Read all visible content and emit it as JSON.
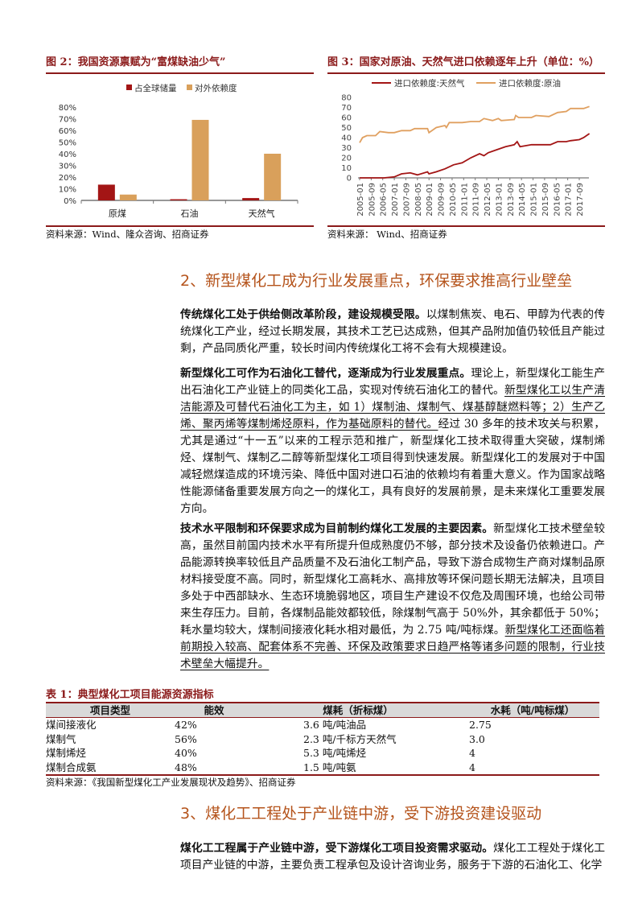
{
  "figure2": {
    "title": "图 2：我国资源禀赋为“富煤缺油少气”",
    "source": "资料来源：Wind、隆众咨询、招商证券",
    "chart_data": {
      "type": "bar",
      "categories": [
        "原煤",
        "石油",
        "天然气"
      ],
      "series": [
        {
          "name": "占全球储量",
          "values": [
            13.5,
            1,
            2
          ],
          "color": "#a31515"
        },
        {
          "name": "对外依赖度",
          "values": [
            5,
            69,
            40
          ],
          "color": "#d9a05b"
        }
      ],
      "ylim": [
        0,
        80
      ],
      "yticks": [
        "0%",
        "10%",
        "20%",
        "30%",
        "40%",
        "50%",
        "60%",
        "70%",
        "80%"
      ],
      "legend": "top",
      "grid": false
    }
  },
  "figure3": {
    "title": "图 3：国家对原油、天然气进口依赖逐年上升（单位：%）",
    "source": "资料来源：  Wind、招商证券",
    "chart_data": {
      "type": "line",
      "ylim": [
        0,
        80
      ],
      "yticks": [
        "0",
        "10",
        "20",
        "30",
        "40",
        "50",
        "60",
        "70",
        "80"
      ],
      "xticks": [
        "2005-01",
        "2005-09",
        "2006-05",
        "2007-01",
        "2007-09",
        "2008-05",
        "2009-01",
        "2009-09",
        "2010-05",
        "2011-01",
        "2011-09",
        "2012-05",
        "2013-01",
        "2013-09",
        "2014-05",
        "2015-01",
        "2015-09",
        "2016-05",
        "2017-01",
        "2017-09"
      ],
      "legend": "top",
      "grid": false,
      "series": [
        {
          "name": "进口依赖度:天然气",
          "color": "#a31515",
          "points": [
            [
              "2005-01",
              0
            ],
            [
              "2006-06",
              0
            ],
            [
              "2007-01",
              1
            ],
            [
              "2007-06",
              4
            ],
            [
              "2007-12",
              5
            ],
            [
              "2008-05",
              3
            ],
            [
              "2008-12",
              6
            ],
            [
              "2009-01",
              4
            ],
            [
              "2009-06",
              6
            ],
            [
              "2009-12",
              9
            ],
            [
              "2010-06",
              13
            ],
            [
              "2010-12",
              15
            ],
            [
              "2011-06",
              20
            ],
            [
              "2011-12",
              24
            ],
            [
              "2012-03",
              22
            ],
            [
              "2012-06",
              25
            ],
            [
              "2012-12",
              28
            ],
            [
              "2013-06",
              31
            ],
            [
              "2013-12",
              33
            ],
            [
              "2014-02",
              36
            ],
            [
              "2014-04",
              31
            ],
            [
              "2014-12",
              33
            ],
            [
              "2015-06",
              33
            ],
            [
              "2016-01",
              33
            ],
            [
              "2016-06",
              36
            ],
            [
              "2016-12",
              36
            ],
            [
              "2017-03",
              37
            ],
            [
              "2017-09",
              38
            ],
            [
              "2017-12",
              40
            ],
            [
              "2018-04",
              44
            ]
          ]
        },
        {
          "name": "进口依赖度:原油",
          "color": "#e0a060",
          "points": [
            [
              "2005-01",
              35
            ],
            [
              "2005-03",
              40
            ],
            [
              "2005-06",
              42
            ],
            [
              "2005-12",
              42
            ],
            [
              "2006-03",
              46
            ],
            [
              "2006-09",
              45
            ],
            [
              "2007-01",
              45
            ],
            [
              "2007-06",
              47
            ],
            [
              "2007-12",
              47
            ],
            [
              "2008-03",
              49
            ],
            [
              "2008-12",
              49
            ],
            [
              "2009-01",
              45
            ],
            [
              "2009-06",
              50
            ],
            [
              "2009-12",
              52
            ],
            [
              "2010-01",
              50
            ],
            [
              "2010-03",
              55
            ],
            [
              "2010-12",
              55
            ],
            [
              "2011-06",
              56
            ],
            [
              "2011-12",
              56
            ],
            [
              "2012-03",
              59
            ],
            [
              "2012-09",
              57
            ],
            [
              "2013-01",
              59
            ],
            [
              "2013-03",
              57
            ],
            [
              "2013-12",
              58
            ],
            [
              "2014-01",
              62
            ],
            [
              "2014-03",
              60
            ],
            [
              "2014-12",
              60
            ],
            [
              "2015-03",
              62
            ],
            [
              "2015-12",
              61
            ],
            [
              "2016-06",
              65
            ],
            [
              "2016-12",
              66
            ],
            [
              "2017-03",
              69
            ],
            [
              "2017-12",
              69
            ],
            [
              "2018-04",
              71
            ]
          ]
        }
      ]
    }
  },
  "section2": {
    "heading": "2、新型煤化工成为行业发展重点，环保要求推高行业壁垒",
    "paragraphs": [
      {
        "lead": "传统煤化工处于供给侧改革阶段，建设规模受限。",
        "text": "以煤制焦炭、电石、甲醇为代表的传统煤化工产业，经过长期发展，其技术工艺已达成熟，但其产品附加值仍较低且产能过剩，产品同质化严重，较长时间内传统煤化工将不会有大规模建设。",
        "underline": "",
        "tail": ""
      },
      {
        "lead": "新型煤化工可作为石油化工替代，逐渐成为行业发展重点。",
        "text": "理论上，新型煤化工能生产出石油化工产业链上的同类化工品，实现对传统石油化工的替代。",
        "underline": "新型煤化工以生产清洁能源及可替代石油化工为主，如 1）煤制油、煤制气、煤基醇醚燃料等；2）生产乙烯、聚丙烯等煤制烯烃原料，作为基础原料的替代。",
        "tail": "经过 30 多年的技术攻关与积累，尤其是通过“十一五”以来的工程示范和推广，新型煤化工技术取得重大突破，煤制烯烃、煤制气、煤制乙二醇等新型煤化工项目得到快速发展。新型煤化工的发展对于中国减轻燃煤造成的环境污染、降低中国对进口石油的依赖均有着重大意义。作为国家战略性能源储备重要发展方向之一的煤化工，具有良好的发展前景，是未来煤化工重要发展方向。"
      },
      {
        "lead": "技术水平限制和环保要求成为目前制约煤化工发展的主要因素。",
        "text": "新型煤化工技术壁垒较高，虽然目前国内技术水平有所提升但成熟度仍不够，部分技术及设备仍依赖进口。产品能源转换率较低且产品质量不及石油化工制产品，导致下游合成物生产商对煤制品原材料接受度不高。同时，新型煤化工高耗水、高排放等环保问题长期无法解决，且项目多处于中西部缺水、生态环境脆弱地区，项目生产建设不仅危及周围环境，也给公司带来生存压力。目前，各煤制品能效都较低，除煤制气高于 50%外，其余都低于 50%；耗水量均较大，煤制间接液化耗水相对最低，为 2.75 吨/吨标煤。",
        "underline": "新型煤化工还面临着前期投入较高、配套体系不完善、环保及政策要求日趋严格等诸多问题的限制，行业技术壁垒大幅提升。",
        "tail": ""
      }
    ]
  },
  "table1": {
    "title": "表 1：典型煤化工项目能源资源指标",
    "headers": [
      "项目类型",
      "能效",
      "煤耗（折标煤）",
      "水耗（吨/吨标煤）"
    ],
    "rows": [
      [
        "煤间接液化",
        "42%",
        "3.6 吨/吨油品",
        "2.75"
      ],
      [
        "煤制气",
        "56%",
        "2.3 吨/千标方天然气",
        "3.0"
      ],
      [
        "煤制烯烃",
        "40%",
        "5.3 吨/吨烯烃",
        "4"
      ],
      [
        "煤制合成氨",
        "48%",
        "1.5 吨/吨氨",
        "4"
      ]
    ],
    "source": "资料来源：《我国新型煤化工产业发展现状及趋势》、招商证券"
  },
  "section3": {
    "heading": "3、煤化工工程处于产业链中游，受下游投资建设驱动",
    "paragraphs": [
      {
        "lead": "煤化工工程属于产业链中游，受下游煤化工项目投资需求驱动。",
        "text": "煤化工工程处于煤化工项目产业链的中游，主要负责工程承包及设计咨询业务，服务于下游的石油化工、化学",
        "underline": "",
        "tail": ""
      }
    ]
  }
}
